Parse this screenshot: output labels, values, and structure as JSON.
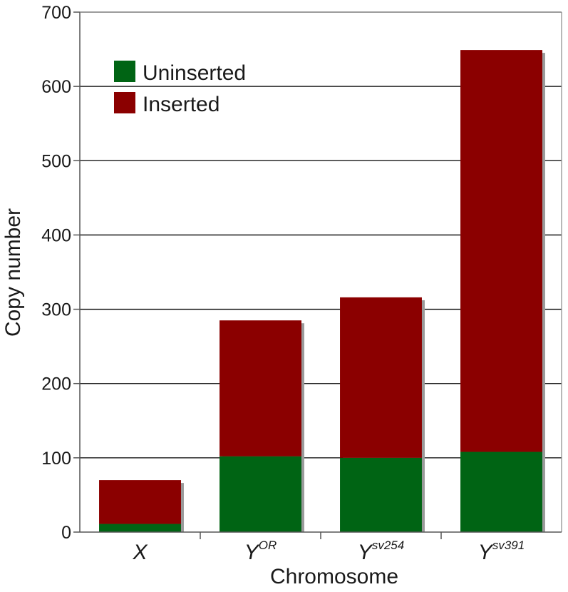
{
  "chart_data": {
    "type": "bar",
    "stacked": true,
    "title": "",
    "xlabel": "Chromosome",
    "ylabel": "Copy number",
    "ylim": [
      0,
      700
    ],
    "yticks": [
      0,
      100,
      200,
      300,
      400,
      500,
      600,
      700
    ],
    "grid": true,
    "legend_position": "top-left",
    "categories": [
      {
        "base": "X",
        "sup": ""
      },
      {
        "base": "Y",
        "sup": "OR"
      },
      {
        "base": "Y",
        "sup": "sv254"
      },
      {
        "base": "Y",
        "sup": "sv391"
      }
    ],
    "series": [
      {
        "name": "Uninserted",
        "color": "#006414",
        "values": [
          11,
          102,
          100,
          108
        ]
      },
      {
        "name": "Inserted",
        "color": "#8b0000",
        "values": [
          59,
          183,
          216,
          541
        ]
      }
    ]
  }
}
